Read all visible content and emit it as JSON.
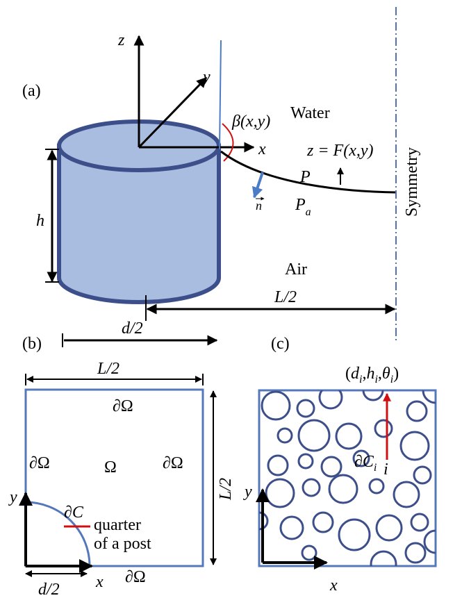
{
  "panel_a": {
    "label": "(a)",
    "axis_z": "z",
    "axis_y": "y",
    "axis_x": "x",
    "contact_angle": "β(x,y)",
    "water": "Water",
    "surface": "z = F(x,y)",
    "pressure": "P",
    "pressure_air": {
      "base": "P",
      "sub": "a"
    },
    "normal": "n",
    "height": "h",
    "air": "Air",
    "half_spacing": "L/2",
    "half_diameter": "d/2",
    "symmetry": "Symmetry"
  },
  "panel_b": {
    "label": "(b)",
    "top_width": "L/2",
    "boundary_top": "∂Ω",
    "boundary_left": "∂Ω",
    "domain": "Ω",
    "boundary_right": "∂Ω",
    "side_height": "L/2",
    "axis_y": "y",
    "post_boundary": "∂C",
    "note_lines": [
      "quarter",
      "of a post"
    ],
    "boundary_bottom": "∂Ω",
    "radius": "d/2",
    "axis_x": "x"
  },
  "panel_c": {
    "label": "(c)",
    "open": "(",
    "separator": ",",
    "close": ")",
    "params": [
      {
        "base": "d",
        "sub": "i"
      },
      {
        "base": "h",
        "sub": "i"
      },
      {
        "base": "θ",
        "sub": "i"
      }
    ],
    "post_boundary": {
      "base": "∂C",
      "sub": "i"
    },
    "index": "i",
    "axis_y": "y",
    "axis_x": "x"
  }
}
